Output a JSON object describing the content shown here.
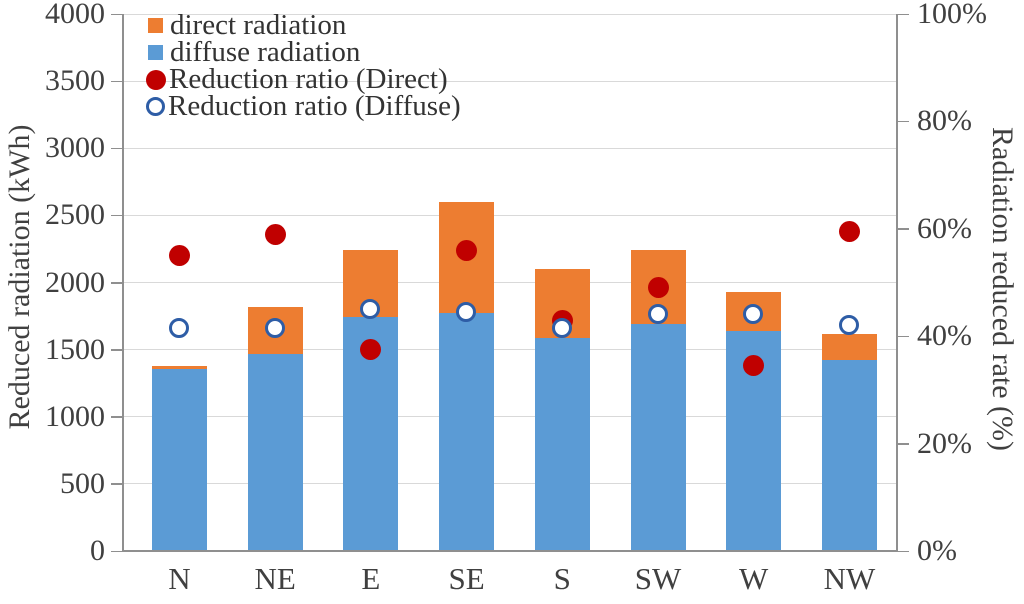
{
  "chart_data": {
    "type": "combo-stacked-bar-scatter",
    "categories": [
      "N",
      "NE",
      "E",
      "SE",
      "S",
      "SW",
      "W",
      "NW"
    ],
    "bar_series": [
      {
        "name": "diffuse radiation",
        "stack_order": "bottom",
        "axis": "left",
        "unit": "kWh",
        "values": [
          1355,
          1465,
          1740,
          1770,
          1590,
          1690,
          1640,
          1425
        ]
      },
      {
        "name": "direct radiation",
        "stack_order": "top",
        "axis": "left",
        "unit": "kWh",
        "values": [
          25,
          350,
          505,
          830,
          510,
          555,
          290,
          190
        ]
      }
    ],
    "scatter_series": [
      {
        "name": "Reduction ratio (Direct)",
        "marker": "filled-circle",
        "axis": "right",
        "unit": "%",
        "values": [
          55,
          59,
          37.5,
          56,
          43,
          49,
          34.5,
          59.5
        ]
      },
      {
        "name": "Reduction ratio (Diffuse)",
        "marker": "open-circle",
        "axis": "right",
        "unit": "%",
        "values": [
          41.5,
          41.5,
          45,
          44.5,
          41.5,
          44,
          44,
          42
        ]
      }
    ],
    "left_axis": {
      "title": "Reduced radiation (kWh)",
      "min": 0,
      "max": 4000,
      "step": 500,
      "tick_labels": [
        "0",
        "500",
        "1000",
        "1500",
        "2000",
        "2500",
        "3000",
        "3500",
        "4000"
      ]
    },
    "right_axis": {
      "title": "Radiation reduced rate (%)",
      "min": 0,
      "max": 100,
      "step": 20,
      "tick_labels": [
        "0%",
        "20%",
        "40%",
        "60%",
        "80%",
        "100%"
      ]
    },
    "legend": {
      "position": "top-left",
      "entries": [
        {
          "label": "direct radiation",
          "marker": "square",
          "color": "#ED7D31"
        },
        {
          "label": "diffuse radiation",
          "marker": "square",
          "color": "#5B9BD5"
        },
        {
          "label": "Reduction ratio (Direct)",
          "marker": "dot",
          "color": "#C00000"
        },
        {
          "label": "Reduction ratio (Diffuse)",
          "marker": "ring",
          "color": "#2E5DA6"
        }
      ]
    },
    "grid": true,
    "colors": {
      "direct": "#ED7D31",
      "diffuse": "#5B9BD5",
      "ratio_direct": "#C00000",
      "ratio_diffuse_ring": "#2E5DA6",
      "gridline": "#D9D9D9",
      "axis_line": "#8F8F8F",
      "text": "#404040"
    }
  }
}
